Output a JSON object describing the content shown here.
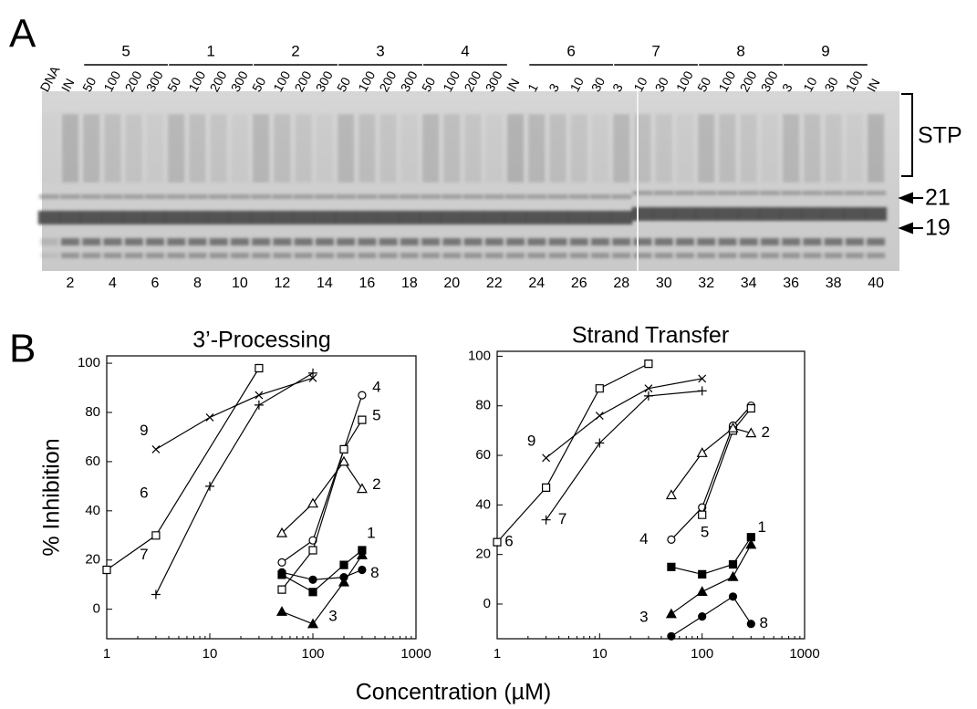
{
  "panel_a": {
    "label": "A",
    "lanes": [
      {
        "label": "DNA"
      },
      {
        "label": "IN"
      },
      {
        "group": "5",
        "doses": [
          "50",
          "100",
          "200",
          "300"
        ]
      },
      {
        "group": "1",
        "doses": [
          "50",
          "100",
          "200",
          "300"
        ]
      },
      {
        "group": "2",
        "doses": [
          "50",
          "100",
          "200",
          "300"
        ]
      },
      {
        "group": "3",
        "doses": [
          "50",
          "100",
          "200",
          "300"
        ]
      },
      {
        "group": "4",
        "doses": [
          "50",
          "100",
          "200",
          "300"
        ]
      },
      {
        "label": "IN"
      },
      {
        "group": "6",
        "doses": [
          "1",
          "3",
          "10",
          "30"
        ]
      },
      {
        "group": "7",
        "doses": [
          "3",
          "10",
          "30",
          "100"
        ]
      },
      {
        "group": "8",
        "doses": [
          "50",
          "100",
          "200",
          "300"
        ]
      },
      {
        "group": "9",
        "doses": [
          "3",
          "10",
          "30",
          "100"
        ]
      },
      {
        "label": "IN"
      }
    ],
    "lane_numbers": [
      2,
      4,
      6,
      8,
      10,
      12,
      14,
      16,
      18,
      20,
      22,
      24,
      26,
      28,
      30,
      32,
      34,
      36,
      38,
      40
    ],
    "stp_label": "STP",
    "size_markers": [
      "21",
      "19"
    ]
  },
  "panel_b_label": "B",
  "y_label": "% Inhibition",
  "x_label": "Concentration (µM)",
  "chart_data": [
    {
      "type": "line",
      "title": "3’-Processing",
      "xlog": true,
      "xlim": [
        1,
        1000
      ],
      "xticks": [
        1,
        10,
        100,
        1000
      ],
      "ylim": [
        -12,
        103
      ],
      "yticks": [
        0,
        20,
        40,
        60,
        80,
        100
      ],
      "series": [
        {
          "name": "9",
          "marker": "x",
          "color": "#000000",
          "x": [
            3,
            10,
            30,
            100
          ],
          "values": [
            65,
            78,
            87,
            94
          ]
        },
        {
          "name": "6",
          "marker": "square",
          "color": "#000000",
          "x": [
            1,
            3,
            30
          ],
          "values": [
            16,
            30,
            98
          ]
        },
        {
          "name": "7",
          "marker": "plus",
          "color": "#000000",
          "x": [
            3,
            10,
            30,
            100
          ],
          "values": [
            6,
            50,
            83,
            96
          ]
        },
        {
          "name": "4",
          "marker": "circle",
          "color": "#000000",
          "x": [
            50,
            100,
            200,
            300
          ],
          "values": [
            19,
            28,
            65,
            87
          ]
        },
        {
          "name": "5",
          "marker": "square",
          "color": "#000000",
          "x": [
            50,
            100,
            200,
            300
          ],
          "values": [
            8,
            24,
            65,
            77
          ]
        },
        {
          "name": "2",
          "marker": "triangle",
          "color": "#000000",
          "x": [
            50,
            100,
            200,
            300
          ],
          "values": [
            31,
            43,
            60,
            49
          ]
        },
        {
          "name": "1",
          "marker": "filled-square",
          "color": "#000000",
          "x": [
            50,
            100,
            200,
            300
          ],
          "values": [
            14,
            7,
            18,
            24
          ]
        },
        {
          "name": "8",
          "marker": "filled-circle",
          "color": "#000000",
          "x": [
            50,
            100,
            200,
            300
          ],
          "values": [
            15,
            12,
            13,
            16
          ]
        },
        {
          "name": "3",
          "marker": "filled-triangle",
          "color": "#000000",
          "x": [
            50,
            100,
            200,
            300
          ],
          "values": [
            -1,
            -6,
            11,
            22
          ]
        }
      ]
    },
    {
      "type": "line",
      "title": "Strand Transfer",
      "xlog": true,
      "xlim": [
        1,
        1000
      ],
      "xticks": [
        1,
        10,
        100,
        1000
      ],
      "ylim": [
        -14,
        102
      ],
      "yticks": [
        0,
        20,
        40,
        60,
        80,
        100
      ],
      "series": [
        {
          "name": "9",
          "marker": "x",
          "color": "#000000",
          "x": [
            3,
            10,
            30,
            100
          ],
          "values": [
            59,
            76,
            87,
            91
          ]
        },
        {
          "name": "6",
          "marker": "square",
          "color": "#000000",
          "x": [
            1,
            3,
            10,
            30
          ],
          "values": [
            25,
            47,
            87,
            97
          ]
        },
        {
          "name": "7",
          "marker": "plus",
          "color": "#000000",
          "x": [
            3,
            10,
            30,
            100
          ],
          "values": [
            34,
            65,
            84,
            86
          ]
        },
        {
          "name": "4",
          "marker": "circle",
          "color": "#000000",
          "x": [
            50,
            100,
            200,
            300
          ],
          "values": [
            26,
            39,
            72,
            80
          ]
        },
        {
          "name": "5",
          "marker": "square",
          "color": "#000000",
          "x": [
            100,
            200,
            300
          ],
          "values": [
            36,
            70,
            79
          ]
        },
        {
          "name": "2",
          "marker": "triangle",
          "color": "#000000",
          "x": [
            50,
            100,
            200,
            300
          ],
          "values": [
            44,
            61,
            71,
            69
          ]
        },
        {
          "name": "1",
          "marker": "filled-square",
          "color": "#000000",
          "x": [
            50,
            100,
            200,
            300
          ],
          "values": [
            15,
            12,
            16,
            27
          ]
        },
        {
          "name": "3",
          "marker": "filled-triangle",
          "color": "#000000",
          "x": [
            50,
            100,
            200,
            300
          ],
          "values": [
            -4,
            5,
            11,
            24
          ]
        },
        {
          "name": "8",
          "marker": "filled-circle",
          "color": "#000000",
          "x": [
            50,
            100,
            200,
            300
          ],
          "values": [
            -13,
            -5,
            3,
            -8
          ]
        }
      ]
    }
  ]
}
